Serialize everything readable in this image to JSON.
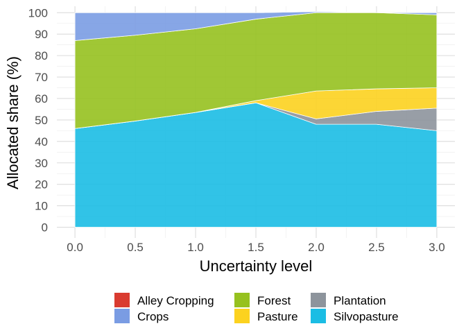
{
  "chart_data": {
    "type": "area",
    "stacked": true,
    "title": "",
    "xlabel": "Uncertainty level",
    "ylabel": "Allocated share (%)",
    "x": [
      0,
      0.5,
      1,
      1.5,
      2,
      2.5,
      3
    ],
    "x_ticks": [
      "0.0",
      "0.5",
      "1.0",
      "1.5",
      "2.0",
      "2.5",
      "3.0"
    ],
    "xlim": [
      -0.15,
      3.15
    ],
    "y_ticks": [
      "0",
      "10",
      "20",
      "30",
      "40",
      "50",
      "60",
      "70",
      "80",
      "90",
      "100"
    ],
    "ylim": [
      -5,
      103
    ],
    "grid": true,
    "legend_position": "bottom",
    "series": [
      {
        "name": "Silvopasture",
        "color": "#1bbde4",
        "values": [
          46,
          49.5,
          53.5,
          58,
          48,
          48,
          45
        ]
      },
      {
        "name": "Plantation",
        "color": "#8d949c",
        "values": [
          0,
          0,
          0,
          0,
          2.5,
          6,
          10.5
        ]
      },
      {
        "name": "Pasture",
        "color": "#fcd21f",
        "values": [
          0,
          0,
          0,
          1,
          13,
          10.5,
          9.5
        ]
      },
      {
        "name": "Forest",
        "color": "#96c11f",
        "values": [
          41,
          40,
          39,
          38,
          36.5,
          35.5,
          34
        ]
      },
      {
        "name": "Crops",
        "color": "#7a9ce3",
        "values": [
          13,
          10.5,
          7.5,
          3,
          0.5,
          0,
          1
        ]
      },
      {
        "name": "Alley Cropping",
        "color": "#d93b30",
        "values": [
          0,
          0,
          0,
          0,
          0,
          0,
          0
        ]
      }
    ],
    "legend": [
      {
        "name": "Alley Cropping",
        "color": "#d93b30"
      },
      {
        "name": "Crops",
        "color": "#7a9ce3"
      },
      {
        "name": "Forest",
        "color": "#96c11f"
      },
      {
        "name": "Pasture",
        "color": "#fcd21f"
      },
      {
        "name": "Plantation",
        "color": "#8d949c"
      },
      {
        "name": "Silvopasture",
        "color": "#1bbde4"
      }
    ]
  }
}
